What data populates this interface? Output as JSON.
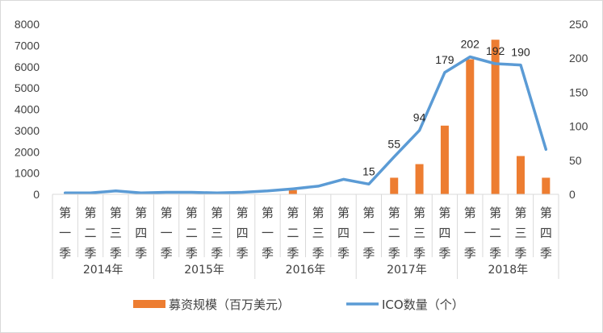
{
  "chart_data": {
    "type": "bar+line",
    "years": [
      "2014年",
      "2015年",
      "2016年",
      "2017年",
      "2018年"
    ],
    "quarter_labels": [
      "第一季",
      "第二季",
      "第三季",
      "第四季"
    ],
    "series": [
      {
        "name": "募资规模（百万美元）",
        "type": "bar",
        "axis": "left",
        "color": "#ED7D31",
        "values": [
          0,
          0,
          0,
          0,
          0,
          0,
          0,
          0,
          0,
          200,
          0,
          0,
          0,
          780,
          1420,
          3230,
          6350,
          7270,
          1800,
          780
        ]
      },
      {
        "name": "ICO数量（个）",
        "type": "line",
        "axis": "right",
        "color": "#5B9BD5",
        "values": [
          2,
          2,
          5,
          2,
          3,
          3,
          2,
          3,
          5,
          8,
          12,
          22,
          15,
          55,
          94,
          179,
          202,
          192,
          190,
          66
        ],
        "data_labels": [
          null,
          null,
          null,
          null,
          null,
          null,
          null,
          null,
          null,
          null,
          null,
          null,
          "15",
          "55",
          "94",
          "179",
          "202",
          "192",
          "190",
          null
        ]
      }
    ],
    "left_axis": {
      "min": 0,
      "max": 8000,
      "ticks": [
        "0",
        "1000",
        "2000",
        "3000",
        "4000",
        "5000",
        "6000",
        "7000",
        "8000"
      ]
    },
    "right_axis": {
      "min": 0,
      "max": 250,
      "ticks": [
        "0",
        "50",
        "100",
        "150",
        "200",
        "250"
      ]
    },
    "grid": false,
    "legend_position": "bottom"
  }
}
